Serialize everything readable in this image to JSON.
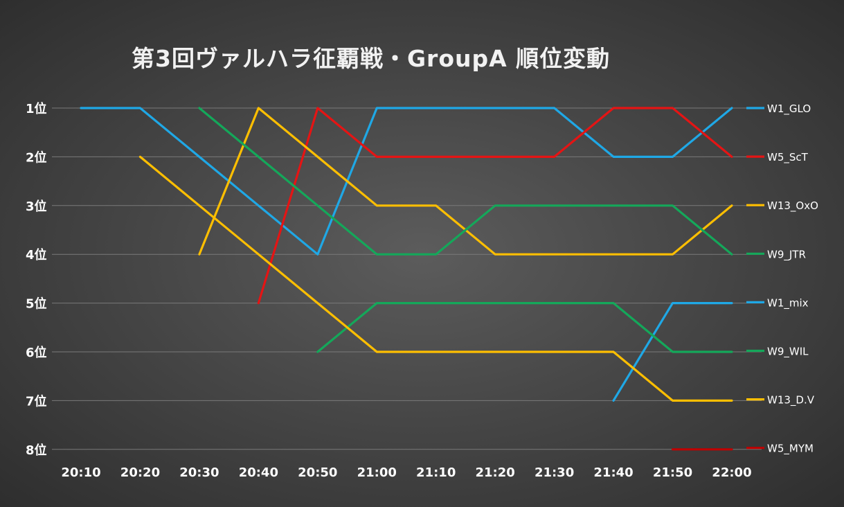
{
  "chart_data": {
    "type": "line",
    "title": "第3回ヴァルハラ征覇戦・GroupA 順位変動",
    "xlabel": "",
    "ylabel": "",
    "categories": [
      "20:10",
      "20:20",
      "20:30",
      "20:40",
      "20:50",
      "21:00",
      "21:10",
      "21:20",
      "21:30",
      "21:40",
      "21:50",
      "22:00"
    ],
    "y_ticks": [
      "1位",
      "2位",
      "3位",
      "4位",
      "5位",
      "6位",
      "7位",
      "8位"
    ],
    "ylim": [
      1,
      8
    ],
    "y_inverted": true,
    "grid": true,
    "legend_position": "right",
    "series": [
      {
        "name": "W1_GLO",
        "color": "#1fa8e6",
        "values": [
          1,
          1,
          2,
          3,
          4,
          1,
          1,
          1,
          1,
          2,
          2,
          1
        ]
      },
      {
        "name": "W5_ScT",
        "color": "#e51414",
        "values": [
          null,
          null,
          null,
          5,
          1,
          2,
          2,
          2,
          2,
          1,
          1,
          2
        ]
      },
      {
        "name": "W13_OxO",
        "color": "#ffbf00",
        "values": [
          null,
          null,
          4,
          1,
          2,
          3,
          3,
          4,
          4,
          4,
          4,
          3
        ]
      },
      {
        "name": "W9_JTR",
        "color": "#14a85a",
        "values": [
          null,
          null,
          1,
          2,
          3,
          4,
          4,
          3,
          3,
          3,
          3,
          4
        ]
      },
      {
        "name": "W1_mix",
        "color": "#1fa8e6",
        "values": [
          null,
          null,
          null,
          null,
          null,
          null,
          null,
          null,
          null,
          7,
          5,
          5
        ]
      },
      {
        "name": "W9_WIL",
        "color": "#14a85a",
        "values": [
          null,
          null,
          null,
          null,
          6,
          5,
          5,
          5,
          5,
          5,
          6,
          6
        ]
      },
      {
        "name": "W13_D.V",
        "color": "#ffbf00",
        "values": [
          null,
          2,
          3,
          4,
          5,
          6,
          6,
          6,
          6,
          6,
          7,
          7
        ]
      },
      {
        "name": "W5_MYM",
        "color": "#c00000",
        "values": [
          null,
          null,
          null,
          null,
          null,
          null,
          null,
          null,
          null,
          null,
          8,
          8
        ]
      }
    ]
  }
}
